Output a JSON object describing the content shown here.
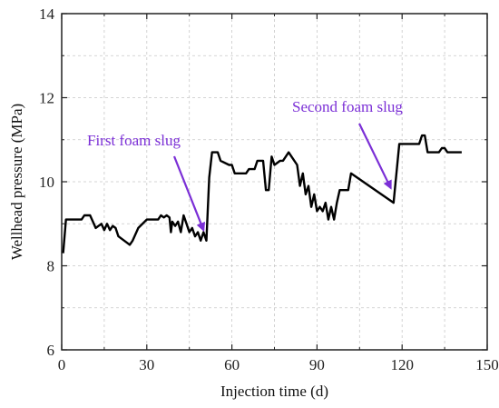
{
  "chart_data": {
    "type": "line",
    "title": "",
    "xlabel": "Injection time (d)",
    "ylabel": "Wellhead pressure (MPa)",
    "xlim": [
      0,
      150
    ],
    "ylim": [
      6,
      14
    ],
    "xticks": [
      0,
      30,
      60,
      90,
      120,
      150
    ],
    "yticks": [
      6,
      8,
      10,
      12,
      14
    ],
    "xtick_labels": [
      "0",
      "30",
      "60",
      "90",
      "120",
      "150"
    ],
    "ytick_labels": [
      "6",
      "8",
      "10",
      "12",
      "14"
    ],
    "grid": true,
    "legend": "none",
    "series": [
      {
        "color": "#000000",
        "points": [
          [
            0.5,
            8.3
          ],
          [
            1.5,
            9.1
          ],
          [
            7,
            9.1
          ],
          [
            8,
            9.2
          ],
          [
            10,
            9.2
          ],
          [
            12,
            8.9
          ],
          [
            14,
            9.0
          ],
          [
            15,
            8.85
          ],
          [
            16,
            9.0
          ],
          [
            17,
            8.85
          ],
          [
            18,
            8.95
          ],
          [
            19,
            8.9
          ],
          [
            20,
            8.7
          ],
          [
            23,
            8.55
          ],
          [
            24,
            8.5
          ],
          [
            25,
            8.6
          ],
          [
            27,
            8.9
          ],
          [
            30,
            9.1
          ],
          [
            34,
            9.1
          ],
          [
            35,
            9.2
          ],
          [
            36,
            9.15
          ],
          [
            37,
            9.2
          ],
          [
            38,
            9.15
          ],
          [
            38.5,
            8.8
          ],
          [
            39,
            9.05
          ],
          [
            40,
            8.95
          ],
          [
            41,
            9.05
          ],
          [
            42,
            8.8
          ],
          [
            43,
            9.2
          ],
          [
            44,
            9.0
          ],
          [
            45,
            8.8
          ],
          [
            46,
            8.9
          ],
          [
            47,
            8.7
          ],
          [
            48,
            8.8
          ],
          [
            49,
            8.6
          ],
          [
            50,
            8.8
          ],
          [
            51,
            8.6
          ],
          [
            52,
            10.1
          ],
          [
            53,
            10.7
          ],
          [
            55,
            10.7
          ],
          [
            56,
            10.5
          ],
          [
            59,
            10.4
          ],
          [
            60,
            10.4
          ],
          [
            61,
            10.2
          ],
          [
            65,
            10.2
          ],
          [
            66,
            10.3
          ],
          [
            68,
            10.3
          ],
          [
            69,
            10.5
          ],
          [
            71,
            10.5
          ],
          [
            72,
            9.8
          ],
          [
            73,
            9.8
          ],
          [
            74,
            10.6
          ],
          [
            75,
            10.4
          ],
          [
            77,
            10.5
          ],
          [
            78,
            10.5
          ],
          [
            79,
            10.6
          ],
          [
            80,
            10.7
          ],
          [
            81,
            10.6
          ],
          [
            83,
            10.4
          ],
          [
            84,
            9.9
          ],
          [
            85,
            10.2
          ],
          [
            86,
            9.7
          ],
          [
            87,
            9.9
          ],
          [
            88,
            9.4
          ],
          [
            89,
            9.7
          ],
          [
            90,
            9.3
          ],
          [
            91,
            9.4
          ],
          [
            92,
            9.3
          ],
          [
            93,
            9.5
          ],
          [
            94,
            9.1
          ],
          [
            95,
            9.4
          ],
          [
            96,
            9.1
          ],
          [
            97,
            9.5
          ],
          [
            98,
            9.8
          ],
          [
            101,
            9.8
          ],
          [
            102,
            10.2
          ],
          [
            117,
            9.5
          ],
          [
            119,
            10.9
          ],
          [
            126,
            10.9
          ],
          [
            127,
            11.1
          ],
          [
            128,
            11.1
          ],
          [
            129,
            10.7
          ],
          [
            133,
            10.7
          ],
          [
            134,
            10.8
          ],
          [
            135,
            10.8
          ],
          [
            136,
            10.7
          ],
          [
            141,
            10.7
          ]
        ]
      }
    ],
    "annotations": [
      {
        "text": "First foam slug",
        "color": "#7B2FD6",
        "arrow_to": [
          50,
          8.85
        ]
      },
      {
        "text": "Second foam slug",
        "color": "#7B2FD6",
        "arrow_to": [
          116,
          9.85
        ]
      }
    ]
  }
}
